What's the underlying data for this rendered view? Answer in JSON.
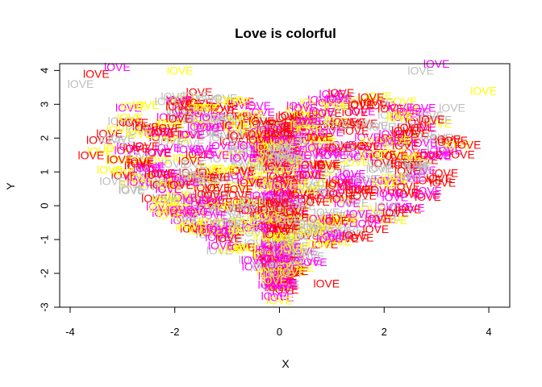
{
  "chart_data": {
    "type": "scatter",
    "title": "Love is colorful",
    "xlabel": "X",
    "ylabel": "Y",
    "xlim": [
      -4.2,
      4.4
    ],
    "ylim": [
      -3.0,
      4.2
    ],
    "x_ticks": [
      -4,
      -2,
      0,
      2,
      4
    ],
    "y_ticks": [
      -3,
      -2,
      -1,
      0,
      1,
      2,
      3,
      4
    ],
    "grid": false,
    "legend": "none",
    "point_text": "lOVE",
    "palette": [
      "#ff0000",
      "#ff00ff",
      "#ffff00",
      "#bebebe"
    ],
    "approx_point_count": 1000,
    "shape": "heart-shaped cloud of text labels",
    "extreme_points": [
      {
        "x": -3.5,
        "y": 3.9,
        "label": "lOVE",
        "color": "#ff0000"
      },
      {
        "x": -3.1,
        "y": 4.1,
        "label": "lOVE",
        "color": "#ff00ff"
      },
      {
        "x": -1.9,
        "y": 4.0,
        "label": "lOVE",
        "color": "#ffff00"
      },
      {
        "x": -3.8,
        "y": 3.6,
        "label": "lOVE",
        "color": "#bebebe"
      },
      {
        "x": 2.7,
        "y": 4.0,
        "label": "lOVE",
        "color": "#bebebe"
      },
      {
        "x": 3.0,
        "y": 4.2,
        "label": "lOVE",
        "color": "#ff00ff"
      },
      {
        "x": 3.9,
        "y": 3.4,
        "label": "lOVE",
        "color": "#ffff00"
      },
      {
        "x": 3.3,
        "y": 2.9,
        "label": "lOVE",
        "color": "#bebebe"
      },
      {
        "x": 3.6,
        "y": 1.8,
        "label": "lOVE",
        "color": "#ff0000"
      },
      {
        "x": -3.6,
        "y": 1.5,
        "label": "lOVE",
        "color": "#ff0000"
      },
      {
        "x": 0.9,
        "y": -2.3,
        "label": "lOVE",
        "color": "#ff0000"
      },
      {
        "x": 0.0,
        "y": -2.8,
        "label": "lOVE",
        "color": "#ffff00"
      }
    ]
  }
}
